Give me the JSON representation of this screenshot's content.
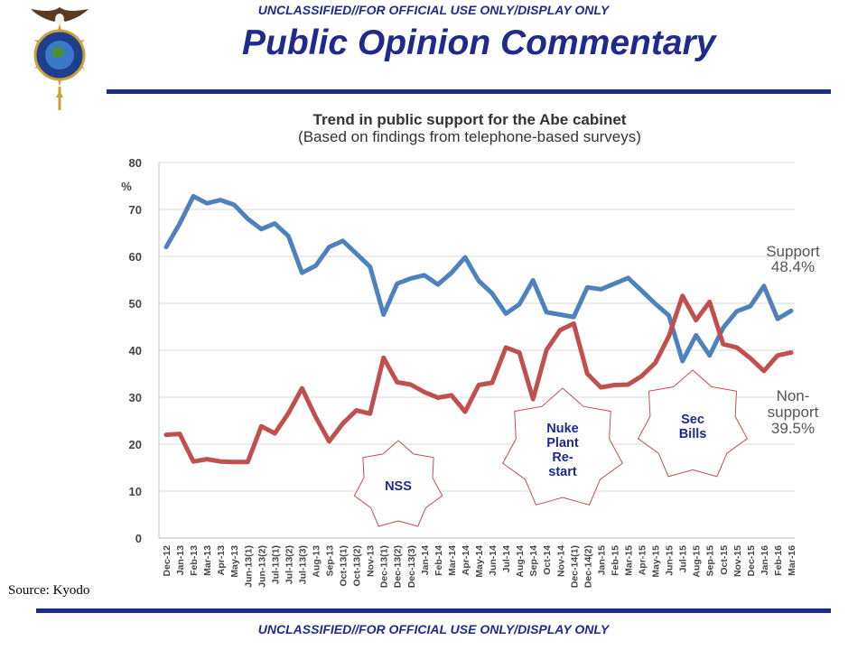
{
  "header": {
    "classification": "UNCLASSIFIED//FOR OFFICIAL USE ONLY/DISPLAY ONLY",
    "title": "Public Opinion Commentary"
  },
  "footer": {
    "classification": "UNCLASSIFIED//FOR OFFICIAL USE ONLY/DISPLAY ONLY",
    "source": "Source: Kyodo"
  },
  "colors": {
    "support": "#4f81bd",
    "non_support": "#c0504d",
    "brand_blue": "#1f2a8c",
    "callout_border": "#c0504d",
    "callout_text": "#1f2a8c"
  },
  "chart_data": {
    "type": "line",
    "title": "Trend in public support for the Abe cabinet",
    "subtitle": "(Based on findings from telephone-based surveys)",
    "ylabel": "%",
    "ylim": [
      0,
      80
    ],
    "yticks": [
      0,
      10,
      20,
      30,
      40,
      50,
      60,
      70,
      80
    ],
    "grid": true,
    "categories": [
      "Dec-12",
      "Jan-13",
      "Feb-13",
      "Mar-13",
      "Apr-13",
      "May-13",
      "Jun-13(1)",
      "Jun-13(2)",
      "Jul-13(1)",
      "Jul-13(2)",
      "Jul-13(3)",
      "Aug-13",
      "Sep-13",
      "Oct-13(1)",
      "Oct-13(2)",
      "Nov-13",
      "Dec-13(1)",
      "Dec-13(2)",
      "Dec-13(3)",
      "Jan-14",
      "Feb-14",
      "Mar-14",
      "Apr-14",
      "May-14",
      "Jun-14",
      "Jul-14",
      "Aug-14",
      "Sep-14",
      "Oct-14",
      "Nov-14",
      "Dec-14(1)",
      "Dec-14(2)",
      "Jan-15",
      "Feb-15",
      "Mar-15",
      "Apr-15",
      "May-15",
      "Jun-15",
      "Jul-15",
      "Aug-15",
      "Sep-15",
      "Oct-15",
      "Nov-15",
      "Dec-15",
      "Jan-16",
      "Feb-16",
      "Mar-16"
    ],
    "series": [
      {
        "key": "support",
        "name": "Support",
        "end_label": "48.4%",
        "values": [
          62,
          67,
          72.8,
          71.3,
          72,
          71,
          68,
          65.8,
          67,
          64.3,
          56.5,
          58,
          62,
          63.3,
          60.6,
          57.8,
          47.6,
          54.2,
          55.3,
          56,
          54,
          56.5,
          59.8,
          54.8,
          52.1,
          47.8,
          49.8,
          54.9,
          48.1,
          47.6,
          47.1,
          53.4,
          53,
          54.2,
          55.4,
          52.7,
          49.9,
          47.4,
          37.7,
          43.2,
          38.9,
          44.8,
          48.3,
          49.4,
          53.7,
          46.7,
          48.4
        ]
      },
      {
        "key": "non_support",
        "name": "Non-support",
        "end_label": "39.5%",
        "values": [
          22,
          22.2,
          16.3,
          16.8,
          16.3,
          16.2,
          16.2,
          23.8,
          22.3,
          26.6,
          31.9,
          25.8,
          20.6,
          24.4,
          27.2,
          26.5,
          38.4,
          33.2,
          32.7,
          31.1,
          29.9,
          30.4,
          26.9,
          32.6,
          33.1,
          40.6,
          39.5,
          29.6,
          40.1,
          44.3,
          45.7,
          35,
          32.1,
          32.6,
          32.7,
          34.5,
          37.3,
          43,
          51.6,
          46.4,
          50.3,
          41.3,
          40.6,
          38.3,
          35.6,
          38.9,
          39.5
        ]
      }
    ],
    "annotations": [
      {
        "label": "NSS",
        "cx": 441,
        "cy": 538,
        "r": 50
      },
      {
        "label": "Nuke Plant Re-start",
        "cx": 623,
        "cy": 498,
        "r": 68
      },
      {
        "label": "Sec Bills",
        "cx": 767,
        "cy": 472,
        "r": 62
      }
    ]
  }
}
